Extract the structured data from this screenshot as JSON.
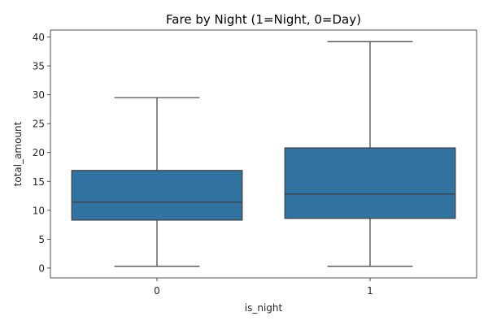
{
  "chart_data": {
    "type": "box",
    "title": "Fare by Night (1=Night, 0=Day)",
    "xlabel": "is_night",
    "ylabel": "total_amount",
    "categories": [
      "0",
      "1"
    ],
    "ylim": [
      -1.7,
      41.2
    ],
    "yticks": [
      0,
      5,
      10,
      15,
      20,
      25,
      30,
      35,
      40
    ],
    "box_color": "#3274a1",
    "edge_color": "#3d3d3d",
    "boxes": [
      {
        "category": "0",
        "whisker_low": 0.3,
        "q1": 8.3,
        "median": 11.4,
        "q3": 16.9,
        "whisker_high": 29.5
      },
      {
        "category": "1",
        "whisker_low": 0.3,
        "q1": 8.6,
        "median": 12.8,
        "q3": 20.8,
        "whisker_high": 39.2
      }
    ],
    "grid": false,
    "legend": "none"
  }
}
